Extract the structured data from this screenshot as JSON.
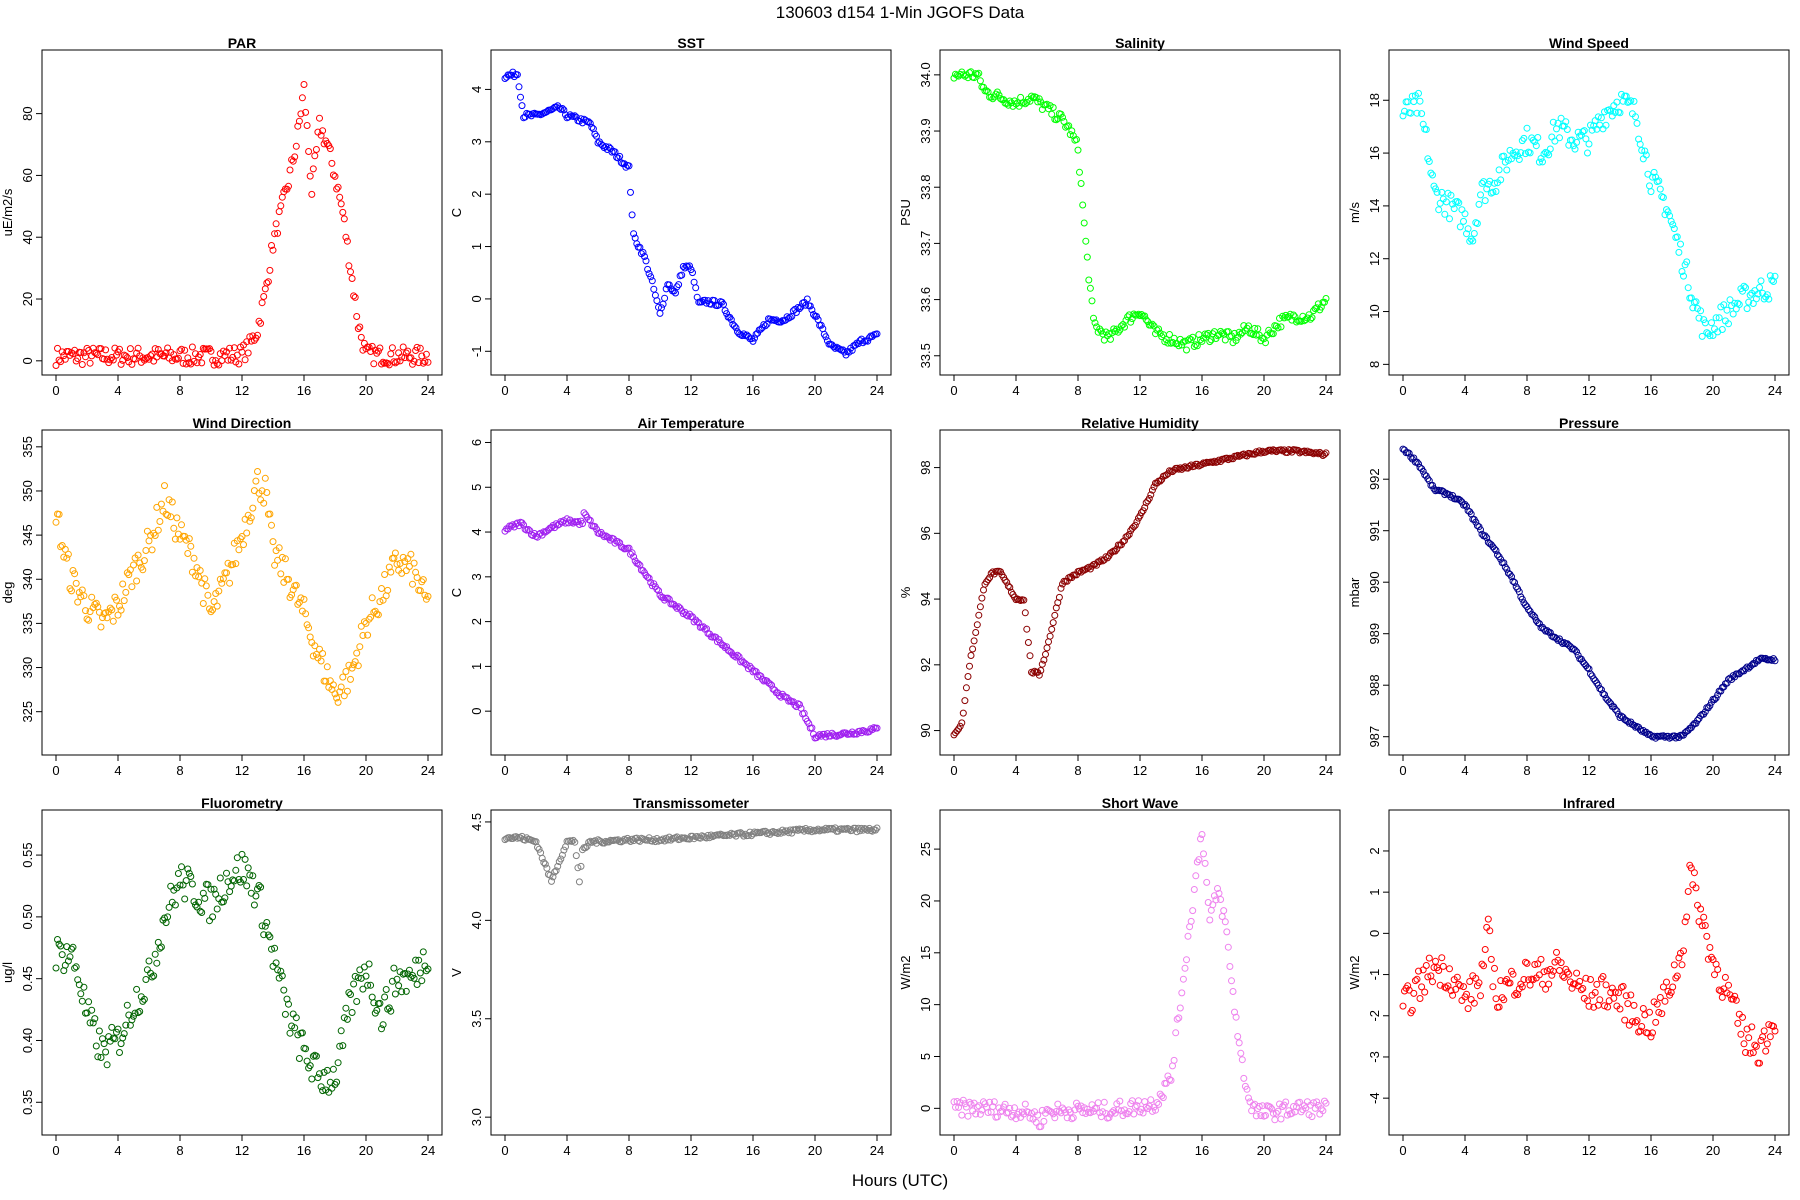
{
  "figure": {
    "title": "130603   d154   1-Min  JGOFS Data",
    "xlabel": "Hours (UTC)"
  },
  "chart_data": [
    {
      "type": "scatter",
      "title": "PAR",
      "ylabel": "uE/m2/s",
      "color": "#ff0000",
      "xlim": [
        0,
        24
      ],
      "ylim": [
        -2,
        98
      ],
      "xticks": [
        0,
        4,
        8,
        12,
        16,
        20,
        24
      ],
      "yticks": [
        0,
        20,
        40,
        60,
        80
      ],
      "series": [
        {
          "name": "PAR",
          "x": [
            0,
            2,
            4,
            6,
            8,
            10,
            12,
            12.5,
            13,
            13.5,
            14,
            14.5,
            15,
            15.5,
            16,
            16.5,
            17,
            17.5,
            18,
            18.5,
            19,
            19.5,
            20,
            22,
            24
          ],
          "y": [
            1.5,
            1.5,
            1.5,
            1.5,
            1.5,
            1.5,
            2,
            5,
            10,
            22,
            38,
            48,
            58,
            70,
            88,
            55,
            76,
            70,
            60,
            48,
            30,
            12,
            2,
            1.5,
            1.5
          ],
          "spread": 3
        }
      ]
    },
    {
      "type": "scatter",
      "title": "SST",
      "ylabel": "C",
      "color": "#0000ff",
      "xlim": [
        0,
        24
      ],
      "ylim": [
        -1.3,
        4.6
      ],
      "xticks": [
        0,
        4,
        8,
        12,
        16,
        20,
        24
      ],
      "yticks": [
        -1,
        0,
        1,
        2,
        3,
        4
      ],
      "series": [
        {
          "name": "SST",
          "x": [
            0,
            0.8,
            1.2,
            2,
            3.5,
            4,
            5.5,
            6,
            7,
            8,
            8.3,
            9,
            9.5,
            10,
            10.5,
            11,
            11.5,
            12,
            12.5,
            13,
            14,
            15,
            16,
            17,
            18,
            19.5,
            20,
            21,
            22,
            23,
            24
          ],
          "y": [
            4.25,
            4.3,
            3.5,
            3.5,
            3.65,
            3.5,
            3.35,
            3.0,
            2.8,
            2.5,
            1.2,
            0.8,
            0.3,
            -0.3,
            0.3,
            0.1,
            0.6,
            0.6,
            -0.1,
            -0.05,
            -0.1,
            -0.6,
            -0.8,
            -0.4,
            -0.4,
            -0.05,
            -0.3,
            -0.9,
            -1.05,
            -0.8,
            -0.7
          ],
          "spread": 0.05
        }
      ]
    },
    {
      "type": "scatter",
      "title": "Salinity",
      "ylabel": "PSU",
      "color": "#00ff00",
      "xlim": [
        0,
        24
      ],
      "ylim": [
        33.48,
        34.03
      ],
      "xticks": [
        0,
        4,
        8,
        12,
        16,
        20,
        24
      ],
      "yticks": [
        33.5,
        33.6,
        33.7,
        33.8,
        33.9,
        34.0
      ],
      "series": [
        {
          "name": "Salinity",
          "x": [
            0,
            1.5,
            2,
            3,
            4,
            5,
            6,
            7,
            7.5,
            8,
            8.5,
            9,
            9.2,
            10,
            11,
            12,
            13,
            14,
            15,
            16,
            17,
            18,
            19,
            20,
            21,
            22,
            23,
            24
          ],
          "y": [
            34.0,
            34.0,
            33.97,
            33.96,
            33.95,
            33.96,
            33.94,
            33.92,
            33.9,
            33.87,
            33.7,
            33.56,
            33.55,
            33.53,
            33.56,
            33.58,
            33.54,
            33.53,
            33.52,
            33.53,
            33.54,
            33.53,
            33.55,
            33.53,
            33.56,
            33.57,
            33.57,
            33.6
          ],
          "spread": 0.01
        }
      ]
    },
    {
      "type": "scatter",
      "title": "Wind Speed",
      "ylabel": "m/s",
      "color": "#00ffff",
      "xlim": [
        0,
        24
      ],
      "ylim": [
        7.9,
        19.6
      ],
      "xticks": [
        0,
        4,
        8,
        12,
        16,
        20,
        24
      ],
      "yticks": [
        8,
        10,
        12,
        14,
        16,
        18
      ],
      "series": [
        {
          "name": "Wind Speed",
          "x": [
            0,
            1,
            1.5,
            2,
            3,
            4,
            4.5,
            5,
            6,
            7,
            8,
            9,
            10,
            11,
            12,
            13,
            14,
            15,
            16,
            17,
            18,
            19,
            19.5,
            20,
            21,
            22,
            23,
            24
          ],
          "y": [
            17.5,
            17.8,
            16.5,
            14.5,
            14,
            13.5,
            12.8,
            14.5,
            15,
            16,
            16.5,
            16,
            17,
            16.5,
            16.5,
            17.5,
            18,
            17.5,
            15,
            14,
            12,
            10,
            9.2,
            9.5,
            10,
            10.5,
            10.8,
            11
          ],
          "spread": 0.5
        }
      ]
    },
    {
      "type": "scatter",
      "title": "Wind Direction",
      "ylabel": "deg",
      "color": "#ffa500",
      "xlim": [
        0,
        24
      ],
      "ylim": [
        321,
        356
      ],
      "xticks": [
        0,
        4,
        8,
        12,
        16,
        20,
        24
      ],
      "yticks": [
        325,
        330,
        335,
        340,
        345,
        350,
        355
      ],
      "series": [
        {
          "name": "Wind Direction",
          "x": [
            0,
            0.5,
            1,
            2,
            3,
            4,
            5,
            6,
            7,
            8,
            9,
            10,
            11,
            12,
            13,
            13.5,
            14,
            15,
            16,
            17,
            18,
            19,
            20,
            21,
            22,
            23,
            24
          ],
          "y": [
            348,
            343,
            340,
            337,
            335,
            337,
            341,
            344,
            349,
            345,
            342,
            336,
            340,
            345,
            351,
            350,
            343,
            340,
            336,
            331,
            327,
            329,
            335,
            338,
            342,
            341,
            337
          ],
          "spread": 1.8
        }
      ]
    },
    {
      "type": "scatter",
      "title": "Air Temperature",
      "ylabel": "C",
      "color": "#a020f0",
      "xlim": [
        0,
        24
      ],
      "ylim": [
        -0.8,
        6.1
      ],
      "xticks": [
        0,
        4,
        8,
        12,
        16,
        20,
        24
      ],
      "yticks": [
        0,
        1,
        2,
        3,
        4,
        5,
        6
      ],
      "series": [
        {
          "name": "Air Temperature",
          "x": [
            0,
            1,
            2,
            3,
            4,
            5,
            5.1,
            6,
            8,
            10,
            12,
            14,
            16,
            18,
            19,
            20,
            22,
            24
          ],
          "y": [
            4.05,
            4.2,
            3.9,
            4.1,
            4.25,
            4.2,
            4.4,
            4.0,
            3.6,
            2.6,
            2.1,
            1.5,
            0.9,
            0.3,
            0.1,
            -0.55,
            -0.5,
            -0.4
          ],
          "spread": 0.05
        }
      ]
    },
    {
      "type": "scatter",
      "title": "Relative Humidity",
      "ylabel": "%",
      "color": "#8b0000",
      "xlim": [
        0,
        24
      ],
      "ylim": [
        89.5,
        98.9
      ],
      "xticks": [
        0,
        4,
        8,
        12,
        16,
        20,
        24
      ],
      "yticks": [
        90,
        92,
        94,
        96,
        98
      ],
      "series": [
        {
          "name": "Relative Humidity",
          "x": [
            0,
            0.5,
            1,
            2,
            2.5,
            3,
            4,
            4.5,
            5,
            5.5,
            6,
            7,
            8,
            9,
            10,
            11,
            12,
            13,
            14,
            16,
            18,
            20,
            22,
            24
          ],
          "y": [
            89.9,
            90.2,
            92,
            94.5,
            94.8,
            94.8,
            94,
            94,
            91.8,
            91.7,
            92.5,
            94.5,
            94.8,
            95,
            95.3,
            95.8,
            96.5,
            97.5,
            97.9,
            98.1,
            98.3,
            98.5,
            98.5,
            98.4
          ],
          "spread": 0.05
        }
      ]
    },
    {
      "type": "scatter",
      "title": "Pressure",
      "ylabel": "mbar",
      "color": "#00008b",
      "xlim": [
        0,
        24
      ],
      "ylim": [
        986.8,
        992.8
      ],
      "xticks": [
        0,
        4,
        8,
        12,
        16,
        20,
        24
      ],
      "yticks": [
        987,
        988,
        989,
        990,
        991,
        992
      ],
      "series": [
        {
          "name": "Pressure",
          "x": [
            0,
            1,
            2,
            3,
            4,
            5,
            6,
            7,
            8,
            9,
            10,
            11,
            12,
            13,
            14,
            15,
            16,
            17,
            18,
            19,
            20,
            21,
            22,
            23,
            24
          ],
          "y": [
            992.6,
            992.3,
            991.8,
            991.7,
            991.5,
            991,
            990.6,
            990.1,
            989.5,
            989.1,
            988.9,
            988.7,
            988.3,
            987.8,
            987.4,
            987.2,
            987,
            987,
            987,
            987.3,
            987.7,
            988.1,
            988.3,
            988.5,
            988.5
          ],
          "spread": 0.03
        }
      ]
    },
    {
      "type": "scatter",
      "title": "Fluorometry",
      "ylabel": "ug/l",
      "color": "#006400",
      "xlim": [
        0,
        24
      ],
      "ylim": [
        0.33,
        0.58
      ],
      "xticks": [
        0,
        4,
        8,
        12,
        16,
        20,
        24
      ],
      "yticks": [
        0.35,
        0.4,
        0.45,
        0.5,
        0.55
      ],
      "series": [
        {
          "name": "Fluorometry",
          "x": [
            0,
            1,
            1.5,
            2,
            3,
            4,
            5,
            6,
            7,
            8,
            9,
            10,
            11,
            12,
            13,
            14,
            15,
            16,
            17,
            18,
            19,
            20,
            21,
            22,
            23,
            24
          ],
          "y": [
            0.47,
            0.47,
            0.45,
            0.42,
            0.39,
            0.4,
            0.43,
            0.45,
            0.5,
            0.53,
            0.52,
            0.51,
            0.53,
            0.54,
            0.52,
            0.47,
            0.42,
            0.39,
            0.37,
            0.37,
            0.43,
            0.46,
            0.42,
            0.45,
            0.45,
            0.47
          ],
          "spread": 0.015
        }
      ]
    },
    {
      "type": "scatter",
      "title": "Transmissometer",
      "ylabel": "V",
      "color": "#808080",
      "xlim": [
        0,
        24
      ],
      "ylim": [
        2.95,
        4.52
      ],
      "xticks": [
        0,
        4,
        8,
        12,
        16,
        20,
        24
      ],
      "yticks": [
        3.0,
        3.5,
        4.0,
        4.5
      ],
      "series": [
        {
          "name": "Transmissometer",
          "x": [
            0,
            1,
            2,
            2.5,
            3,
            3.5,
            4,
            4.5,
            4.8,
            5,
            5.5,
            6,
            8,
            10,
            12,
            14,
            16,
            18,
            20,
            22,
            24
          ],
          "y": [
            4.42,
            4.42,
            4.4,
            4.3,
            4.2,
            4.3,
            4.4,
            4.4,
            4.2,
            4.35,
            4.4,
            4.4,
            4.41,
            4.41,
            4.42,
            4.43,
            4.44,
            4.45,
            4.46,
            4.46,
            4.46
          ],
          "spread": 0.01
        }
      ]
    },
    {
      "type": "scatter",
      "title": "Short Wave",
      "ylabel": "W/m2",
      "color": "#ee82ee",
      "xlim": [
        0,
        24
      ],
      "ylim": [
        -1.8,
        28
      ],
      "xticks": [
        0,
        4,
        8,
        12,
        16,
        20,
        24
      ],
      "yticks": [
        0,
        5,
        10,
        15,
        20,
        25
      ],
      "series": [
        {
          "name": "Short Wave",
          "x": [
            0,
            2,
            4,
            5,
            5.5,
            6,
            8,
            10,
            12,
            13,
            14,
            14.5,
            15,
            15.5,
            16,
            16.5,
            17,
            17.5,
            18,
            18.5,
            19,
            19.5,
            20,
            22,
            24
          ],
          "y": [
            0,
            0,
            -0.2,
            -0.5,
            -1.2,
            -0.3,
            -0.2,
            -0.2,
            0.2,
            0.5,
            3,
            9,
            15,
            21,
            27,
            18,
            21,
            18,
            11,
            5,
            1,
            -0.3,
            -0.5,
            0,
            0
          ],
          "spread": 0.8
        }
      ]
    },
    {
      "type": "scatter",
      "title": "Infrared",
      "ylabel": "W/m2",
      "color": "#ff0000",
      "xlim": [
        0,
        24
      ],
      "ylim": [
        -4.7,
        2.8
      ],
      "xticks": [
        0,
        4,
        8,
        12,
        16,
        20,
        24
      ],
      "yticks": [
        -4,
        -3,
        -2,
        -1,
        0,
        1,
        2
      ],
      "series": [
        {
          "name": "Infrared",
          "x": [
            0,
            1,
            2,
            3,
            4,
            5,
            5.5,
            6,
            7,
            8,
            9,
            10,
            11,
            12,
            13,
            14,
            15,
            16,
            17,
            18,
            18.5,
            19,
            20,
            21,
            22,
            23,
            24
          ],
          "y": [
            -1.8,
            -1.3,
            -0.8,
            -1,
            -1.6,
            -1.2,
            0,
            -1.5,
            -1.2,
            -1,
            -1,
            -0.8,
            -1.2,
            -1.5,
            -1.4,
            -1.6,
            -2,
            -2.2,
            -1.5,
            -0.5,
            1.5,
            0.8,
            -0.7,
            -1.5,
            -2.5,
            -2.8,
            -2
          ],
          "spread": 0.4
        }
      ]
    }
  ]
}
